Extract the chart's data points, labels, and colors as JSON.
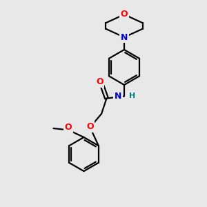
{
  "background_color": "#e8e8e8",
  "bond_color": "#000000",
  "atom_colors": {
    "O": "#ff0000",
    "N": "#0000cc",
    "H": "#008080",
    "C": "#000000"
  },
  "figsize": [
    3.0,
    3.0
  ],
  "dpi": 100
}
